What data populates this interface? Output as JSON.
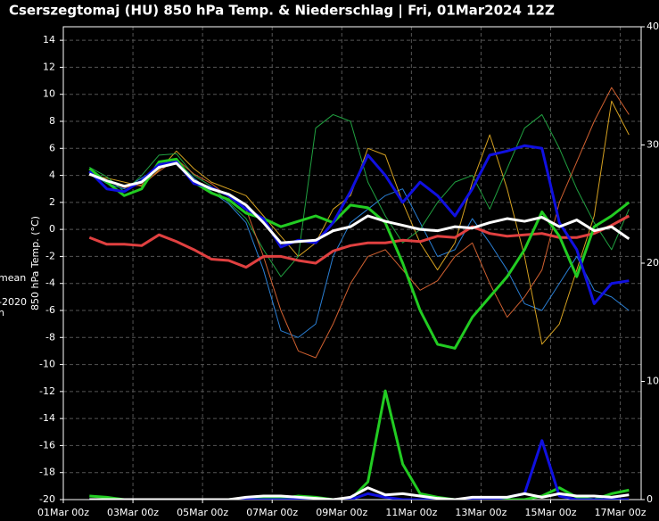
{
  "chart_data": {
    "type": "line",
    "title": "Cserszegtomaj  (HU)  850 hPa Temp. & Niederschlag | Fri, 01Mar2024 12Z",
    "y_label": "850 hPa Temp. (°C)",
    "left_clipped_labels": [
      "mean",
      "-2020",
      "n"
    ],
    "grid": true,
    "xlim": [
      0,
      16.6
    ],
    "xticks": [
      {
        "value": 0,
        "label": "01Mar 00z"
      },
      {
        "value": 2,
        "label": "03Mar 00z"
      },
      {
        "value": 4,
        "label": "05Mar 00z"
      },
      {
        "value": 6,
        "label": "07Mar 00z"
      },
      {
        "value": 8,
        "label": "09Mar 00z"
      },
      {
        "value": 10,
        "label": "11Mar 00z"
      },
      {
        "value": 12,
        "label": "13Mar 00z"
      },
      {
        "value": 14,
        "label": "15Mar 00z"
      },
      {
        "value": 16,
        "label": "17Mar 00z"
      }
    ],
    "ylim": [
      -20,
      15
    ],
    "yticks": [
      -20,
      -18,
      -16,
      -14,
      -12,
      -10,
      -8,
      -6,
      -4,
      -2,
      0,
      2,
      4,
      6,
      8,
      10,
      12,
      14
    ],
    "y2lim": [
      0,
      40
    ],
    "y2ticks": [
      0,
      10,
      20,
      30,
      40
    ],
    "x": [
      0.75,
      1.25,
      1.75,
      2.25,
      2.75,
      3.25,
      3.75,
      4.25,
      4.75,
      5.25,
      5.75,
      6.25,
      6.75,
      7.25,
      7.75,
      8.25,
      8.75,
      9.25,
      9.75,
      10.25,
      10.75,
      11.25,
      11.75,
      12.25,
      12.75,
      13.25,
      13.75,
      14.25,
      14.75,
      15.25,
      15.75,
      16.25
    ],
    "series": [
      {
        "color": "#2a7fd4",
        "width": 1,
        "values": [
          4.2,
          3.4,
          3.0,
          3.8,
          4.6,
          5.1,
          3.8,
          2.8,
          1.9,
          0.5,
          -3.0,
          -7.5,
          -8.0,
          -7.0,
          -2.0,
          0.5,
          1.5,
          2.5,
          3.0,
          0.5,
          -2.0,
          -1.5,
          0.8,
          -1.0,
          -3.0,
          -5.5,
          -6.0,
          -4.0,
          -2.0,
          -4.5,
          -5.0,
          -6.0
        ]
      },
      {
        "color": "#d4a020",
        "width": 1,
        "values": [
          4.0,
          3.8,
          3.5,
          3.2,
          4.4,
          5.8,
          4.5,
          3.5,
          3.0,
          2.5,
          1.0,
          -0.5,
          -2.0,
          -1.0,
          1.5,
          2.5,
          6.0,
          5.5,
          2.0,
          -1.0,
          -3.0,
          -1.0,
          3.5,
          7.0,
          3.0,
          -2.0,
          -8.5,
          -7.0,
          -3.0,
          1.0,
          9.5,
          7.0
        ]
      },
      {
        "color": "#20a040",
        "width": 1,
        "values": [
          4.6,
          3.9,
          2.8,
          4.0,
          5.5,
          5.6,
          4.0,
          3.2,
          2.0,
          0.8,
          -1.5,
          -3.5,
          -2.0,
          7.5,
          8.5,
          8.0,
          3.5,
          1.0,
          -1.0,
          0.0,
          2.0,
          3.5,
          4.0,
          1.5,
          4.5,
          7.5,
          8.5,
          6.0,
          3.0,
          0.5,
          -1.5,
          1.5
        ]
      },
      {
        "color": "#d06030",
        "width": 1,
        "values": [
          4.3,
          3.6,
          3.1,
          3.3,
          4.3,
          5.2,
          4.1,
          3.4,
          2.4,
          1.5,
          -2.0,
          -6.0,
          -9.0,
          -9.5,
          -7.0,
          -4.0,
          -2.0,
          -1.5,
          -3.0,
          -4.5,
          -3.8,
          -2.0,
          -1.0,
          -4.0,
          -6.5,
          -5.0,
          -3.0,
          2.0,
          5.0,
          8.0,
          10.5,
          8.5
        ]
      },
      {
        "color": "#e04040",
        "width": 3,
        "values": [
          -0.6,
          -1.1,
          -1.1,
          -1.2,
          -0.4,
          -0.9,
          -1.5,
          -2.2,
          -2.3,
          -2.8,
          -2.0,
          -2.0,
          -2.3,
          -2.5,
          -1.6,
          -1.2,
          -1.0,
          -1.0,
          -0.8,
          -0.9,
          -0.5,
          -0.6,
          0.2,
          -0.3,
          -0.5,
          -0.4,
          -0.3,
          -0.6,
          -0.6,
          -0.3,
          0.3,
          1.0
        ]
      },
      {
        "color": "#22cc22",
        "width": 3,
        "values": [
          4.5,
          3.5,
          2.5,
          3.0,
          5.0,
          5.2,
          3.5,
          2.7,
          2.2,
          1.2,
          0.8,
          0.2,
          0.6,
          1.0,
          0.5,
          1.8,
          1.6,
          0.5,
          -2.5,
          -6.0,
          -8.5,
          -8.8,
          -6.5,
          -5.0,
          -3.5,
          -1.5,
          1.3,
          -0.5,
          -3.5,
          0.2,
          1.0,
          2.0
        ]
      },
      {
        "color": "#1010e0",
        "width": 3,
        "values": [
          4.3,
          3.0,
          2.8,
          3.6,
          4.8,
          5.0,
          3.4,
          3.1,
          2.5,
          1.5,
          0.8,
          -1.3,
          -0.8,
          -1.0,
          0.5,
          2.8,
          5.5,
          4.0,
          2.0,
          3.5,
          2.5,
          1.0,
          3.0,
          5.5,
          5.8,
          6.2,
          6.0,
          0.5,
          -1.5,
          -5.5,
          -4.0,
          -3.8
        ]
      },
      {
        "color": "#ffffff",
        "width": 3,
        "values": [
          4.1,
          3.6,
          3.2,
          3.5,
          4.6,
          4.9,
          3.6,
          3.0,
          2.6,
          1.8,
          0.5,
          -1.0,
          -0.9,
          -0.8,
          -0.1,
          0.2,
          1.0,
          0.6,
          0.3,
          0.0,
          -0.1,
          0.2,
          0.1,
          0.5,
          0.8,
          0.6,
          0.9,
          0.2,
          0.7,
          -0.1,
          0.2,
          -0.7
        ]
      },
      {
        "color": "#22cc22",
        "width": 3,
        "axis": "y2",
        "values": [
          0.3,
          0.2,
          0,
          0,
          0,
          0,
          0,
          0,
          0,
          0.1,
          0.2,
          0.1,
          0.3,
          0.2,
          0,
          0,
          1.5,
          9.2,
          3.0,
          0.5,
          0.2,
          0,
          0,
          0.1,
          0,
          0,
          0.3,
          1.0,
          0.2,
          0,
          0.5,
          0.8
        ]
      },
      {
        "color": "#1010e0",
        "width": 3,
        "axis": "y2",
        "values": [
          0,
          0,
          0,
          0,
          0,
          0,
          0,
          0,
          0,
          0,
          0,
          0,
          0,
          0,
          0,
          0,
          0.5,
          0.2,
          0,
          0,
          0,
          0,
          0,
          0,
          0.2,
          0.5,
          5.0,
          0.3,
          0,
          0,
          0,
          0
        ]
      },
      {
        "color": "#ffffff",
        "width": 3,
        "axis": "y2",
        "values": [
          0,
          0,
          0,
          0,
          0,
          0,
          0,
          0,
          0,
          0.2,
          0.3,
          0.3,
          0.2,
          0.1,
          0,
          0.2,
          1.0,
          0.4,
          0.5,
          0.3,
          0.1,
          0,
          0.2,
          0.2,
          0.2,
          0.5,
          0.2,
          0.5,
          0.3,
          0.3,
          0.2,
          0.4
        ]
      }
    ]
  }
}
